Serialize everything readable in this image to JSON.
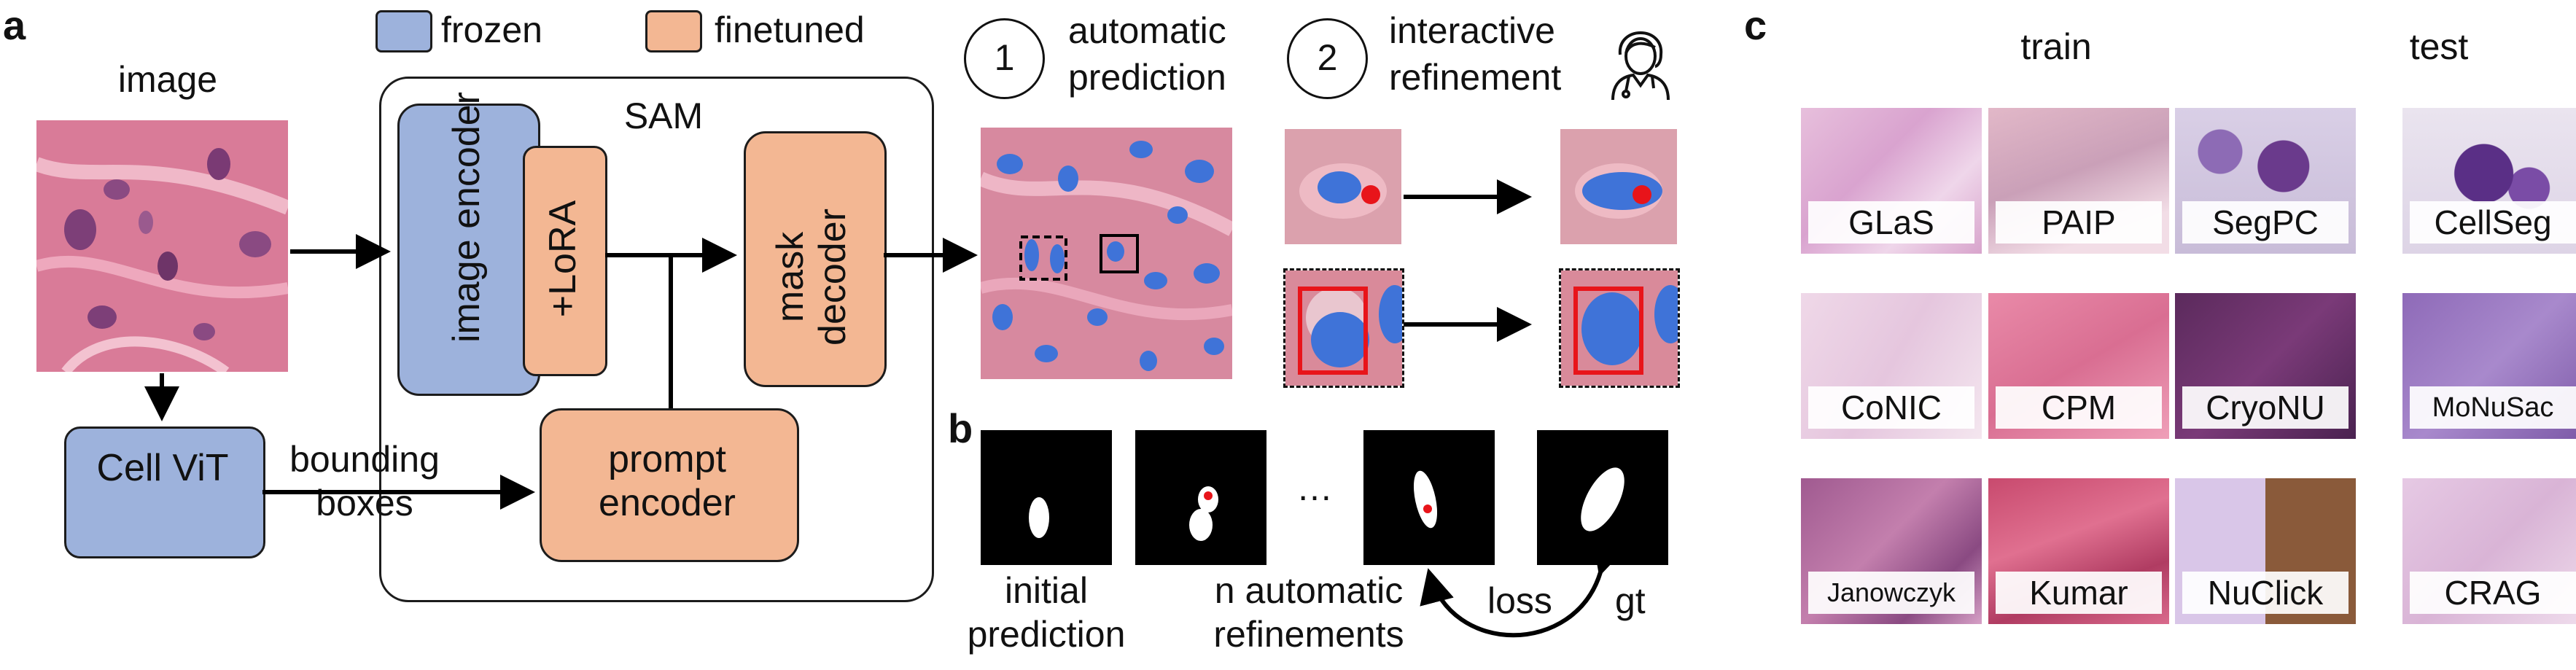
{
  "panels": {
    "a": "a",
    "b": "b",
    "c": "c"
  },
  "legend": {
    "frozen": "frozen",
    "finetuned": "finetuned",
    "frozen_color": "#9db2dc",
    "finetuned_color": "#f3b793"
  },
  "panel_a": {
    "image_label": "image",
    "sam_label": "SAM",
    "image_encoder": "image encoder",
    "lora": "+LoRA",
    "mask_decoder": "mask decoder",
    "prompt_encoder": "prompt encoder",
    "cellvit": "Cell ViT",
    "bounding_boxes": "bounding boxes",
    "step1_num": "1",
    "step1_label": "automatic prediction",
    "step2_num": "2",
    "step2_label": "interactive refinement",
    "doctor_icon": "doctor-icon"
  },
  "panel_b": {
    "initial_prediction": "initial prediction",
    "n_refinements": "n automatic refinements",
    "ellipsis": "…",
    "loss": "loss",
    "gt": "gt"
  },
  "panel_c": {
    "train_header": "train",
    "test_header": "test",
    "train_datasets": [
      "GLaS",
      "PAIP",
      "SegPC",
      "CoNIC",
      "CPM",
      "CryoNU",
      "Janowczyk",
      "Kumar",
      "NuClick"
    ],
    "test_datasets": [
      "CellSeg",
      "MoNuSac",
      "CRAG"
    ]
  }
}
